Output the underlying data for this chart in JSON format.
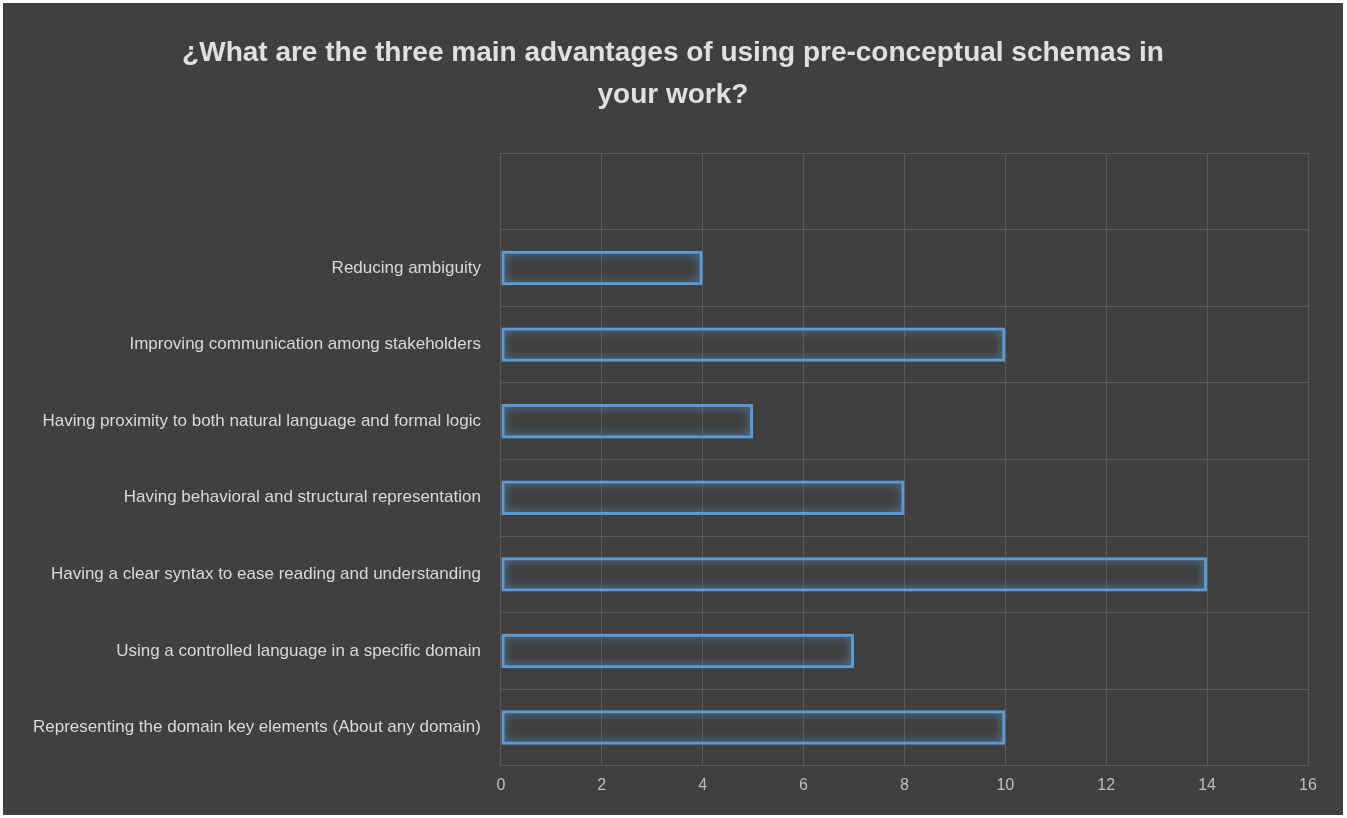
{
  "chart_data": {
    "type": "bar",
    "orientation": "horizontal",
    "title": "¿What are the three main advantages of using pre-conceptual schemas in your work?",
    "categories": [
      null,
      "Reducing ambiguity",
      "Improving communication among stakeholders",
      "Having proximity to both natural language and formal logic",
      "Having behavioral and structural representation",
      "Having a clear syntax to ease reading and understanding",
      "Using a controlled language in a specific domain",
      "Representing the domain key elements (About any domain)"
    ],
    "values": [
      null,
      4,
      10,
      5,
      8,
      14,
      7,
      10
    ],
    "color": "#5b9bd5",
    "xlim": [
      0,
      16
    ],
    "xticks": [
      0,
      2,
      4,
      6,
      8,
      10,
      12,
      14,
      16
    ],
    "grid": true,
    "legend": false
  }
}
